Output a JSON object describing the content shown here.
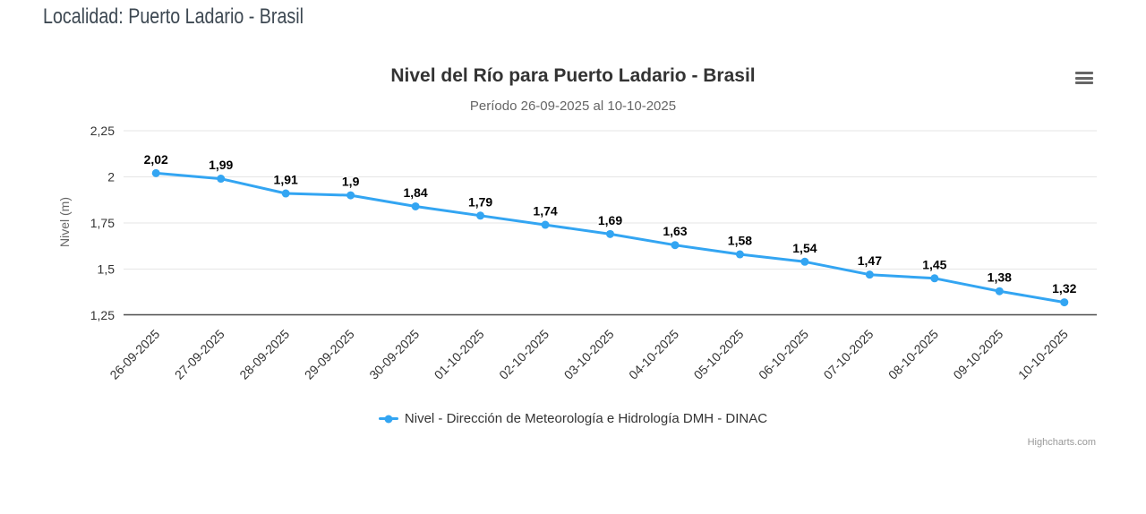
{
  "page": {
    "header_label": "Localidad: Puerto Ladario - Brasil"
  },
  "chart": {
    "credits": "Highcharts.com",
    "colors": {
      "series": "#33a5f2",
      "grid": "#e6e6e6",
      "axis_line": "#515151",
      "title": "#333333",
      "subtitle": "#666666",
      "tick_labels": "#333333",
      "data_labels": "#000000",
      "credits": "#999999"
    }
  },
  "chart_data": {
    "type": "line",
    "title": "Nivel del Río para Puerto Ladario - Brasil",
    "subtitle": "Período 26-09-2025 al 10-10-2025",
    "ylabel": "Nivel (m)",
    "xlabel": "",
    "ylim": [
      1.25,
      2.25
    ],
    "yticks": [
      1.25,
      1.5,
      1.75,
      2,
      2.25
    ],
    "grid": true,
    "legend_position": "bottom",
    "decimal_separator": ",",
    "x_label_rotation": -45,
    "categories": [
      "26-09-2025",
      "27-09-2025",
      "28-09-2025",
      "29-09-2025",
      "30-09-2025",
      "01-10-2025",
      "02-10-2025",
      "03-10-2025",
      "04-10-2025",
      "05-10-2025",
      "06-10-2025",
      "07-10-2025",
      "08-10-2025",
      "09-10-2025",
      "10-10-2025"
    ],
    "series": [
      {
        "name": "Nivel - Dirección de Meteorología e Hidrología DMH - DINAC",
        "values": [
          2.02,
          1.99,
          1.91,
          1.9,
          1.84,
          1.79,
          1.74,
          1.69,
          1.63,
          1.58,
          1.54,
          1.47,
          1.45,
          1.38,
          1.32
        ]
      }
    ]
  }
}
